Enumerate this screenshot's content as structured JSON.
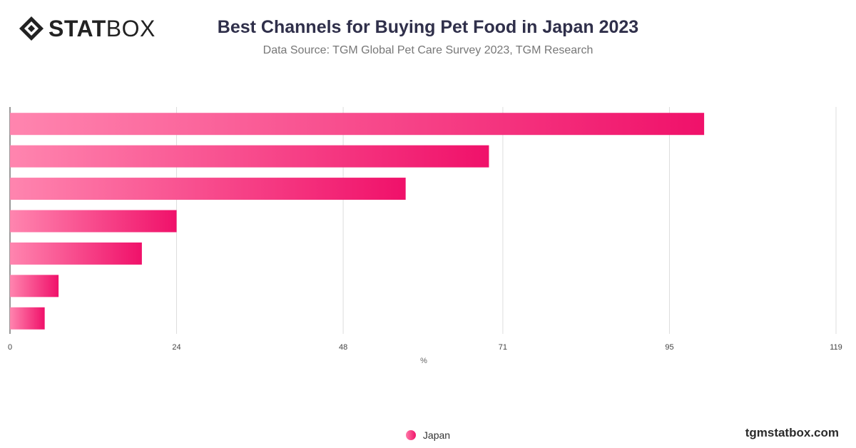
{
  "header": {
    "logo_bold": "STAT",
    "logo_light": "BOX",
    "title": "Best Channels for Buying Pet Food in Japan 2023",
    "subtitle": "Data Source: TGM Global Pet Care Survey 2023, TGM Research"
  },
  "footer": {
    "site": "tgmstatbox.com"
  },
  "colors": {
    "bar_start": "#ff85af",
    "bar_end": "#f0116a",
    "grid": "#dddddd"
  },
  "chart_data": {
    "type": "bar",
    "orientation": "horizontal",
    "xlabel": "%",
    "xlim": [
      0,
      119
    ],
    "x_ticks": [
      0,
      24,
      48,
      71,
      95,
      119
    ],
    "categories": [
      "",
      "",
      "",
      "",
      "",
      "",
      ""
    ],
    "series": [
      {
        "name": "Japan",
        "values": [
          100,
          69,
          57,
          24,
          19,
          7,
          5
        ]
      }
    ],
    "legend_position": "bottom",
    "grid": true
  }
}
